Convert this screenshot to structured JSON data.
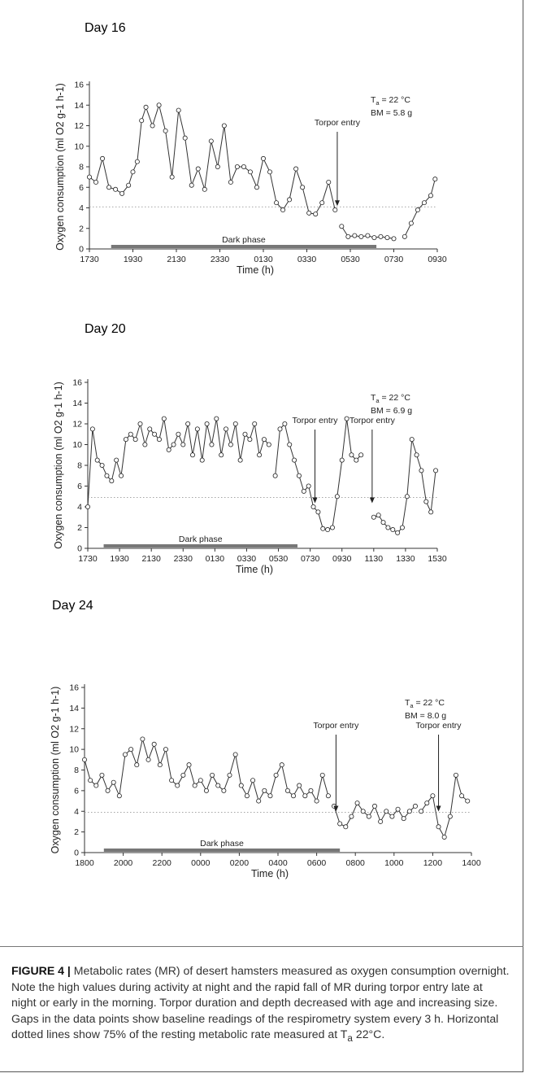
{
  "caption": {
    "label": "FIGURE 4 |",
    "text": " Metabolic rates (MR) of desert hamsters measured as oxygen consumption overnight. Note the high values during activity at night and the rapid fall of MR during torpor entry late at night or early in the morning. Torpor duration and depth decreased with age and increasing size. Gaps in the data points show baseline readings of the respirometry system every 3 h. Horizontal dotted lines show 75% of the resting metabolic rate measured at T",
    "sub": "a",
    "tail": " 22°C."
  },
  "chart_data": [
    {
      "type": "scatter",
      "panel_label": "Day 16",
      "xlabel": "Time (h)",
      "ylabel": "Oxygen consumption (ml O2 g-1 h-1)",
      "ylim": [
        0,
        16
      ],
      "yticks": [
        0,
        2,
        4,
        6,
        8,
        10,
        12,
        14,
        16
      ],
      "xticks": [
        "1730",
        "1930",
        "2130",
        "2330",
        "0130",
        "0330",
        "0530",
        "0730",
        "0930"
      ],
      "xlim_hours_after_1730": [
        0,
        16
      ],
      "annotations": {
        "ta": "T",
        "ta_sub": "a",
        "ta_rest": " = 22 °C",
        "bm": "BM = 5.8 g",
        "dark_phase": "Dark phase",
        "torpor_entries": [
          "Torpor entry"
        ]
      },
      "dark_phase_hours": [
        1.0,
        13.2
      ],
      "torpor_entry_hours": [
        11.4
      ],
      "threshold": 4.1,
      "series": [
        {
          "x": [
            0.0,
            0.3,
            0.6,
            0.9,
            1.2,
            1.5,
            1.8,
            2.0,
            2.2,
            2.4,
            2.6,
            2.9,
            3.2,
            3.5,
            3.8,
            4.1,
            4.4,
            4.7,
            5.0,
            5.3,
            5.6,
            5.9,
            6.2,
            6.5,
            6.8,
            7.1,
            7.4,
            7.7,
            8.0,
            8.3,
            8.6,
            8.9,
            9.2,
            9.5,
            9.8,
            10.1,
            10.4,
            10.7,
            11.0,
            11.3
          ],
          "y": [
            7.0,
            6.5,
            8.8,
            6.0,
            5.8,
            5.4,
            6.2,
            7.5,
            8.5,
            12.5,
            13.8,
            12.0,
            14.0,
            11.5,
            7.0,
            13.5,
            10.8,
            6.2,
            7.8,
            5.8,
            10.5,
            8.0,
            12.0,
            6.5,
            8.0,
            8.0,
            7.5,
            6.0,
            8.8,
            7.5,
            4.5,
            3.8,
            4.8,
            7.8,
            6.0,
            3.5,
            3.4,
            4.5,
            6.5,
            3.8
          ]
        },
        {
          "x": [
            11.6,
            11.9,
            12.2,
            12.5,
            12.8,
            13.1,
            13.4,
            13.7,
            14.0
          ],
          "y": [
            2.2,
            1.2,
            1.3,
            1.2,
            1.3,
            1.1,
            1.2,
            1.1,
            1.0
          ]
        },
        {
          "x": [
            14.5,
            14.8,
            15.1,
            15.4,
            15.7,
            15.9
          ],
          "y": [
            1.2,
            2.5,
            3.8,
            4.5,
            5.2,
            6.8
          ]
        }
      ]
    },
    {
      "type": "scatter",
      "panel_label": "Day 20",
      "xlabel": "Time (h)",
      "ylabel": "Oxygen consumption (ml O2 g-1 h-1)",
      "ylim": [
        0,
        16
      ],
      "yticks": [
        0,
        2,
        4,
        6,
        8,
        10,
        12,
        14,
        16
      ],
      "xticks": [
        "1730",
        "1930",
        "2130",
        "2330",
        "0130",
        "0330",
        "0530",
        "0730",
        "0930",
        "1130",
        "1330",
        "1530"
      ],
      "xlim_hours_after_1730": [
        0,
        22
      ],
      "annotations": {
        "ta": "T",
        "ta_sub": "a",
        "ta_rest": " = 22 °C",
        "bm": "BM = 6.9 g",
        "dark_phase": "Dark phase",
        "torpor_entries": [
          "Torpor entry",
          "Torpor entry"
        ]
      },
      "dark_phase_hours": [
        1.0,
        13.2
      ],
      "torpor_entry_hours": [
        14.3,
        17.9
      ],
      "threshold": 4.9,
      "series": [
        {
          "x": [
            0.0,
            0.3,
            0.6,
            0.9,
            1.2,
            1.5,
            1.8,
            2.1,
            2.4,
            2.7,
            3.0,
            3.3,
            3.6,
            3.9,
            4.2,
            4.5,
            4.8,
            5.1,
            5.4,
            5.7,
            6.0,
            6.3,
            6.6,
            6.9,
            7.2,
            7.5,
            7.8,
            8.1,
            8.4,
            8.7,
            9.0,
            9.3,
            9.6,
            9.9,
            10.2,
            10.5,
            10.8,
            11.1,
            11.4
          ],
          "y": [
            4.0,
            11.5,
            8.5,
            8.0,
            7.0,
            6.5,
            8.5,
            7.0,
            10.5,
            11.0,
            10.5,
            12.0,
            10.0,
            11.5,
            11.0,
            10.5,
            12.5,
            9.5,
            10.0,
            11.0,
            10.0,
            12.0,
            9.0,
            11.5,
            8.5,
            12.0,
            10.0,
            12.5,
            9.0,
            11.5,
            10.0,
            12.0,
            8.5,
            11.0,
            10.5,
            12.0,
            9.0,
            10.5,
            10.0
          ]
        },
        {
          "x": [
            11.8,
            12.1,
            12.4,
            12.7,
            13.0,
            13.3,
            13.6,
            13.9,
            14.2,
            14.5,
            14.8,
            15.1,
            15.4,
            15.7,
            16.0,
            16.3,
            16.6,
            16.9,
            17.2
          ],
          "y": [
            7.0,
            11.5,
            12.0,
            10.0,
            8.5,
            7.0,
            5.5,
            6.0,
            4.0,
            3.5,
            1.9,
            1.8,
            2.0,
            5.0,
            8.5,
            12.5,
            9.0,
            8.5,
            9.0
          ]
        },
        {
          "x": [
            18.0,
            18.3,
            18.6,
            18.9,
            19.2,
            19.5,
            19.8,
            20.1,
            20.4,
            20.7,
            21.0,
            21.3,
            21.6,
            21.9
          ],
          "y": [
            3.0,
            3.2,
            2.5,
            2.0,
            1.8,
            1.5,
            2.0,
            5.0,
            10.5,
            9.0,
            7.5,
            4.5,
            3.5,
            7.5
          ]
        }
      ]
    },
    {
      "type": "scatter",
      "panel_label": "Day 24",
      "xlabel": "Time (h)",
      "ylabel": "Oxygen consumption (ml O2 g-1 h-1)",
      "ylim": [
        0,
        16
      ],
      "yticks": [
        0,
        2,
        4,
        6,
        8,
        10,
        12,
        14,
        16
      ],
      "xticks": [
        "1800",
        "2000",
        "2200",
        "0000",
        "0200",
        "0400",
        "0600",
        "0800",
        "1000",
        "1200",
        "1400"
      ],
      "xlim_hours_after_1800": [
        0,
        20
      ],
      "annotations": {
        "ta": "T",
        "ta_sub": "a",
        "ta_rest": " = 22 °C",
        "bm": "BM = 8.0 g",
        "dark_phase": "Dark phase",
        "torpor_entries": [
          "Torpor entry",
          "Torpor entry"
        ]
      },
      "dark_phase_hours": [
        1.0,
        13.2
      ],
      "torpor_entry_hours": [
        13.0,
        18.3
      ],
      "threshold": 3.9,
      "series": [
        {
          "x": [
            0.0,
            0.3,
            0.6,
            0.9,
            1.2,
            1.5,
            1.8,
            2.1,
            2.4,
            2.7,
            3.0,
            3.3,
            3.6,
            3.9,
            4.2,
            4.5,
            4.8,
            5.1,
            5.4,
            5.7,
            6.0,
            6.3,
            6.6,
            6.9,
            7.2,
            7.5,
            7.8,
            8.1,
            8.4,
            8.7,
            9.0,
            9.3,
            9.6,
            9.9,
            10.2,
            10.5,
            10.8,
            11.1,
            11.4,
            11.7,
            12.0,
            12.3,
            12.6
          ],
          "y": [
            9.0,
            7.0,
            6.5,
            7.5,
            6.0,
            6.8,
            5.5,
            9.5,
            10.0,
            8.5,
            11.0,
            9.0,
            10.5,
            8.5,
            10.0,
            7.0,
            6.5,
            7.5,
            8.5,
            6.5,
            7.0,
            6.0,
            7.5,
            6.5,
            6.0,
            7.5,
            9.5,
            6.5,
            5.5,
            7.0,
            5.0,
            6.0,
            5.5,
            7.5,
            8.5,
            6.0,
            5.5,
            6.5,
            5.5,
            6.0,
            5.0,
            7.5,
            5.5
          ]
        },
        {
          "x": [
            12.9,
            13.2,
            13.5,
            13.8,
            14.1,
            14.4,
            14.7,
            15.0,
            15.3,
            15.6,
            15.9,
            16.2,
            16.5,
            16.8,
            17.1
          ],
          "y": [
            4.5,
            2.8,
            2.5,
            3.5,
            4.8,
            4.0,
            3.5,
            4.5,
            3.0,
            4.0,
            3.5,
            4.2,
            3.3,
            4.0,
            4.5
          ]
        },
        {
          "x": [
            17.4,
            17.7,
            18.0,
            18.3,
            18.6,
            18.9,
            19.2,
            19.5,
            19.8
          ],
          "y": [
            4.0,
            4.8,
            5.5,
            2.5,
            1.5,
            3.5,
            7.5,
            5.5,
            5.0
          ]
        }
      ]
    }
  ]
}
